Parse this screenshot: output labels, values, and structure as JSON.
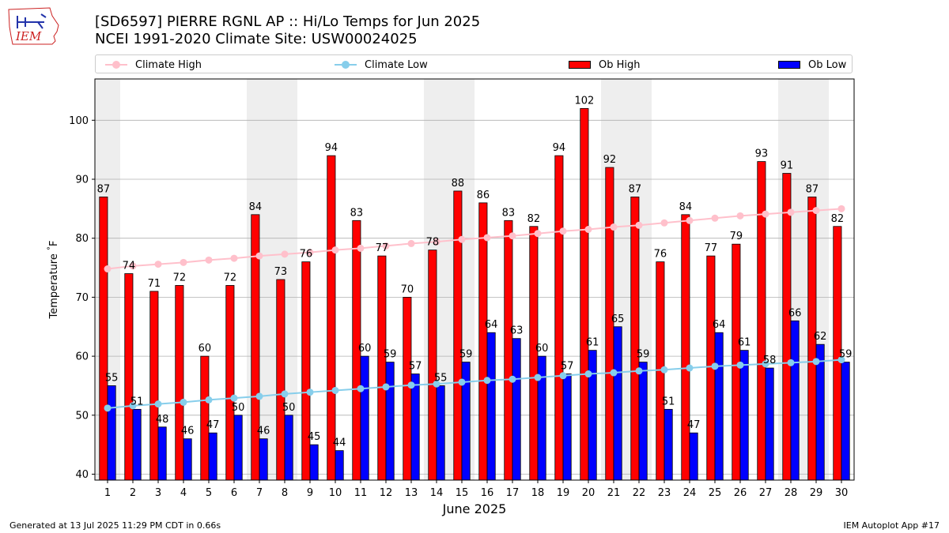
{
  "header": {
    "title_line1": "[SD6597] PIERRE RGNL AP :: Hi/Lo Temps for Jun 2025",
    "title_line2": "NCEI 1991-2020 Climate Site: USW00024025",
    "logo_text": "IEM"
  },
  "footer": {
    "left": "Generated at 13 Jul 2025 11:29 PM CDT in 0.66s",
    "right": "IEM Autoplot App #17"
  },
  "colors": {
    "ob_high": "#ff0000",
    "ob_low": "#0000ff",
    "climate_high": "#ffc0cb",
    "climate_low": "#87ceeb",
    "weekend_shade": "#eeeeee",
    "grid": "#b0b0b0"
  },
  "chart_data": {
    "type": "bar",
    "title": "[SD6597] PIERRE RGNL AP :: Hi/Lo Temps for Jun 2025",
    "subtitle": "NCEI 1991-2020 Climate Site: USW00024025",
    "xlabel": "June 2025",
    "ylabel": "Temperature $^\\circ$F",
    "ylim": [
      39,
      107
    ],
    "yticks": [
      40,
      50,
      60,
      70,
      80,
      90,
      100
    ],
    "grid": "horizontal",
    "legend": "top, above plot",
    "categories": [
      "1",
      "2",
      "3",
      "4",
      "5",
      "6",
      "7",
      "8",
      "9",
      "10",
      "11",
      "12",
      "13",
      "14",
      "15",
      "16",
      "17",
      "18",
      "19",
      "20",
      "21",
      "22",
      "23",
      "24",
      "25",
      "26",
      "27",
      "28",
      "29",
      "30"
    ],
    "shaded_weekend_days": [
      1,
      7,
      8,
      14,
      15,
      21,
      22,
      28,
      29
    ],
    "series": [
      {
        "name": "Ob High",
        "kind": "bar",
        "color": "#ff0000",
        "values": [
          87,
          74,
          71,
          72,
          60,
          72,
          84,
          73,
          76,
          94,
          83,
          77,
          70,
          78,
          88,
          86,
          83,
          82,
          94,
          102,
          92,
          87,
          76,
          84,
          77,
          79,
          93,
          91,
          87,
          82
        ]
      },
      {
        "name": "Ob Low",
        "kind": "bar",
        "color": "#0000ff",
        "values": [
          55,
          51,
          48,
          46,
          47,
          50,
          46,
          50,
          45,
          44,
          60,
          59,
          57,
          55,
          59,
          64,
          63,
          60,
          57,
          61,
          65,
          59,
          51,
          47,
          64,
          61,
          58,
          66,
          62,
          59
        ]
      },
      {
        "name": "Climate High",
        "kind": "line",
        "color": "#ffc0cb",
        "values": [
          74.8,
          75.3,
          75.6,
          75.9,
          76.3,
          76.6,
          77.0,
          77.3,
          77.6,
          78.0,
          78.3,
          78.7,
          79.1,
          79.4,
          79.8,
          80.1,
          80.4,
          80.8,
          81.2,
          81.5,
          81.9,
          82.2,
          82.6,
          83.0,
          83.4,
          83.8,
          84.1,
          84.4,
          84.7,
          85.0
        ]
      },
      {
        "name": "Climate Low",
        "kind": "line",
        "color": "#87ceeb",
        "values": [
          51.2,
          51.6,
          51.9,
          52.2,
          52.6,
          52.9,
          53.2,
          53.6,
          53.9,
          54.2,
          54.5,
          54.8,
          55.1,
          55.3,
          55.6,
          55.9,
          56.1,
          56.4,
          56.7,
          57.0,
          57.2,
          57.5,
          57.7,
          58.0,
          58.3,
          58.5,
          58.7,
          58.9,
          59.1,
          59.4
        ]
      }
    ]
  }
}
